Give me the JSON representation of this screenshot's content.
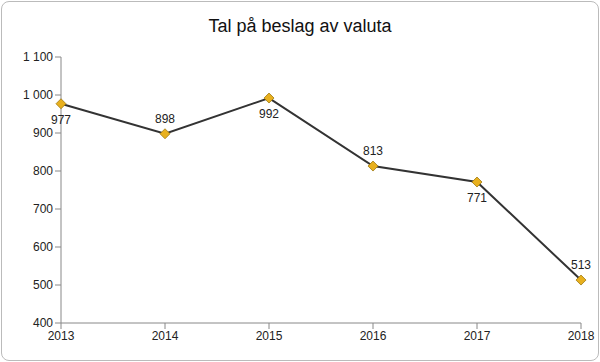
{
  "chart_data": {
    "type": "line",
    "title": "Tal på beslag av valuta",
    "categories": [
      "2013",
      "2014",
      "2015",
      "2016",
      "2017",
      "2018"
    ],
    "values": [
      977,
      898,
      992,
      813,
      771,
      513
    ],
    "color": "#333333",
    "colors": [
      "#e8b01e",
      "#e8b01e",
      "#e8b01e",
      "#e8b01e",
      "#e8b01e",
      "#e8b01e"
    ],
    "marker": "diamond",
    "ylim": [
      400,
      1100
    ],
    "yticks": [
      400,
      500,
      600,
      700,
      800,
      900,
      {
        "value": 1000,
        "label": "1 000"
      },
      {
        "value": 1100,
        "label": "1 100"
      }
    ],
    "grid": false,
    "data_labels": true
  }
}
